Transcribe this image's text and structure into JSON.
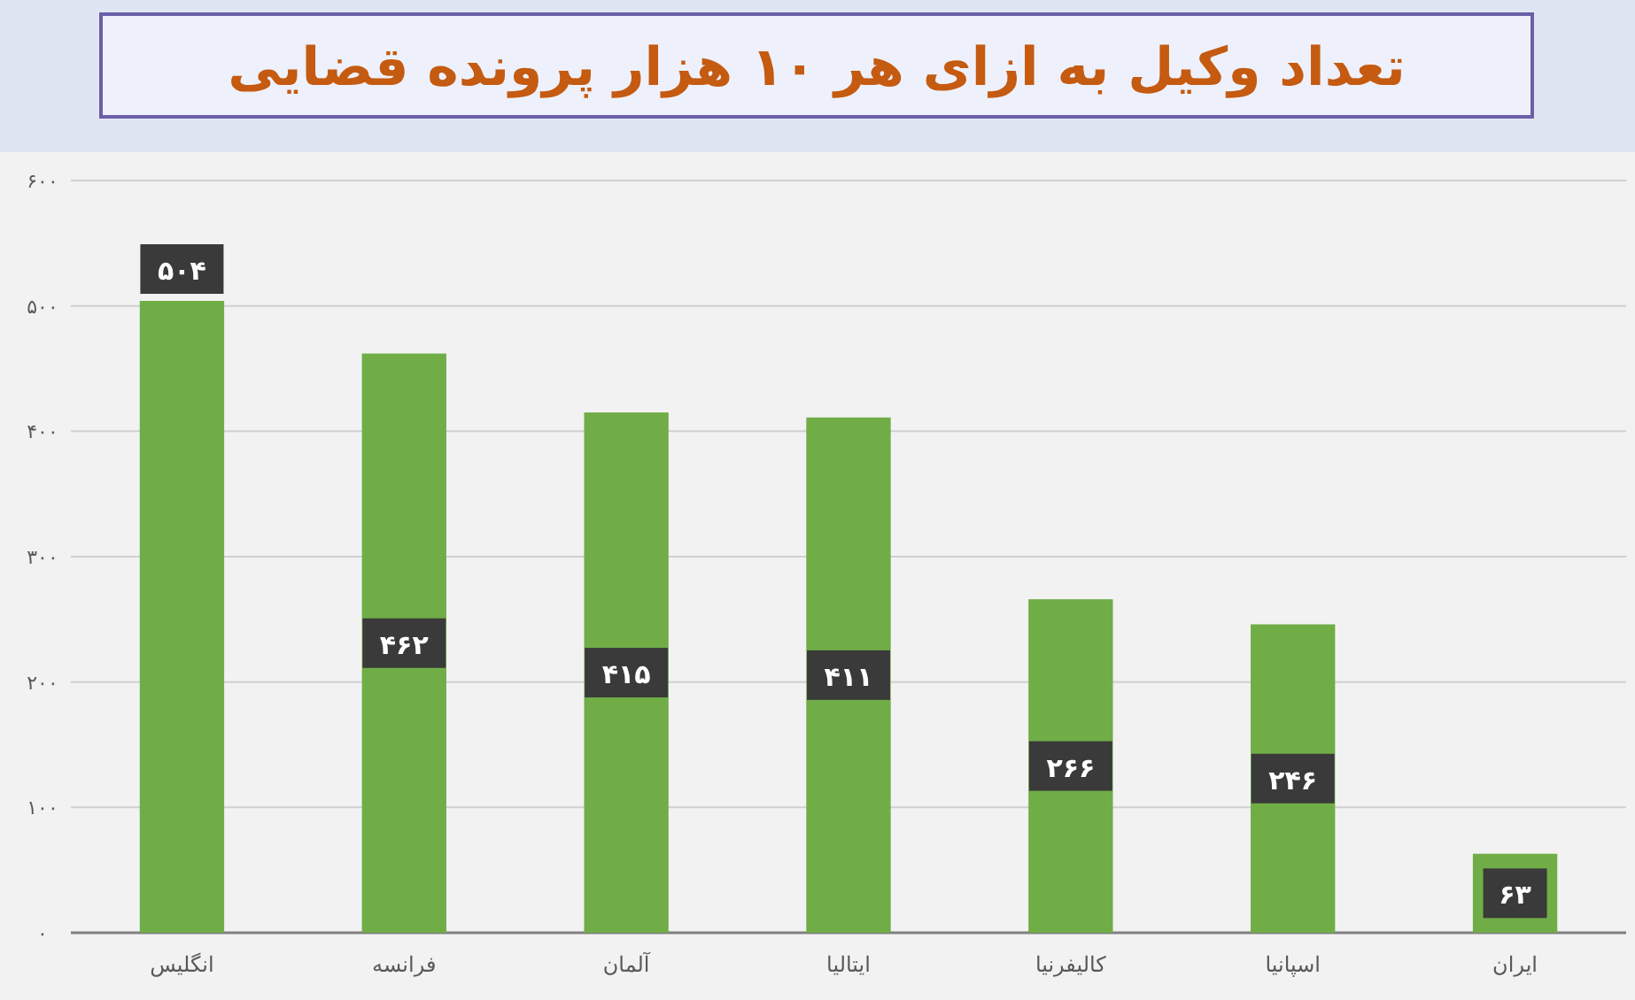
{
  "chart_data": {
    "type": "bar",
    "title": "تعداد وکیل به ازای هر ۱۰ هزار پرونده قضایی",
    "categories": [
      "انگلیس",
      "فرانسه",
      "آلمان",
      "ایتالیا",
      "کالیفرنیا",
      "اسپانیا",
      "ایران"
    ],
    "values": [
      504,
      462,
      415,
      411,
      266,
      246,
      63
    ],
    "value_labels": [
      "۵۰۴",
      "۴۶۲",
      "۴۱۵",
      "۴۱۱",
      "۲۶۶",
      "۲۴۶",
      "۶۳"
    ],
    "color": "#70ad47",
    "ylim": [
      0,
      600
    ],
    "yticks": [
      {
        "value": 0,
        "label": "۰"
      },
      {
        "value": 100,
        "label": "۱۰۰"
      },
      {
        "value": 200,
        "label": "۲۰۰"
      },
      {
        "value": 300,
        "label": "۳۰۰"
      },
      {
        "value": 400,
        "label": "۴۰۰"
      },
      {
        "value": 500,
        "label": "۵۰۰"
      },
      {
        "value": 600,
        "label": "۶۰۰"
      }
    ],
    "grid": "y"
  }
}
